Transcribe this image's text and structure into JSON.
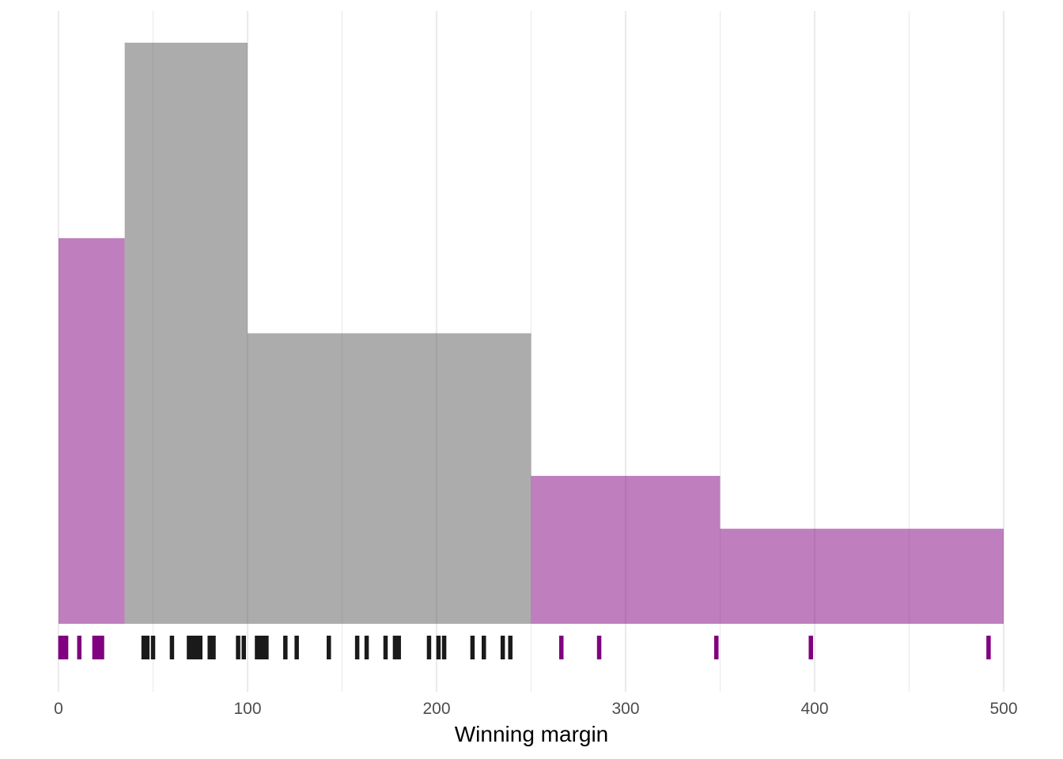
{
  "chart_data": {
    "type": "histogram",
    "xlabel": "Winning margin",
    "ylabel": "",
    "xlim": [
      0,
      500
    ],
    "x_ticks": [
      0,
      100,
      200,
      300,
      400,
      500
    ],
    "x_minor_gridlines": [
      50,
      150,
      250,
      350,
      450
    ],
    "grid": "vertical-only",
    "legend": "none",
    "colors": {
      "highlight": "#800080",
      "base": "#595959",
      "rug_base": "#1a1a1a"
    },
    "bins": [
      {
        "x0": 0,
        "x1": 35,
        "density": 0.0073,
        "group": "highlight"
      },
      {
        "x0": 35,
        "x1": 100,
        "density": 0.011,
        "group": "base"
      },
      {
        "x0": 100,
        "x1": 250,
        "density": 0.0055,
        "group": "base"
      },
      {
        "x0": 250,
        "x1": 350,
        "density": 0.0028,
        "group": "highlight"
      },
      {
        "x0": 350,
        "x1": 500,
        "density": 0.0018,
        "group": "highlight"
      }
    ],
    "rug": {
      "highlight": [
        1,
        2,
        3,
        4,
        11,
        19,
        20,
        21,
        22,
        23,
        266,
        286,
        348,
        398,
        492
      ],
      "base": [
        45,
        47,
        50,
        60,
        69,
        70,
        71,
        72,
        73,
        75,
        80,
        82,
        95,
        98,
        105,
        106,
        107,
        108,
        110,
        120,
        126,
        143,
        158,
        163,
        173,
        178,
        180,
        196,
        201,
        204,
        219,
        225,
        235,
        239
      ]
    }
  }
}
